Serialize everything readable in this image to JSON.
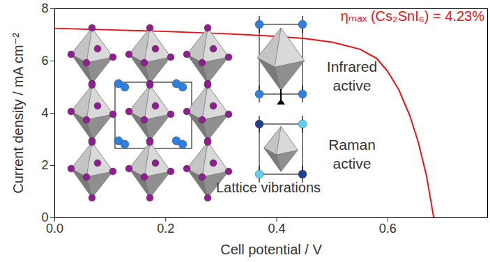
{
  "chart_data": {
    "type": "line",
    "x_label": "Cell potential / V",
    "y_label": "Current density / mA cm⁻²",
    "x": [
      0,
      0.05,
      0.1,
      0.15,
      0.2,
      0.25,
      0.3,
      0.35,
      0.4,
      0.45,
      0.5,
      0.55,
      0.58,
      0.6,
      0.62,
      0.64,
      0.655,
      0.67,
      0.683
    ],
    "values": [
      7.25,
      7.22,
      7.19,
      7.16,
      7.13,
      7.09,
      7.05,
      7.0,
      6.94,
      6.86,
      6.72,
      6.45,
      6.1,
      5.6,
      4.9,
      3.9,
      2.9,
      1.6,
      0
    ],
    "color": "#e8141c",
    "xlim": [
      0,
      0.78
    ],
    "xticks": [
      {
        "value": 0,
        "label": "0.0"
      },
      {
        "value": 0.2,
        "label": "0.2"
      },
      {
        "value": 0.4,
        "label": "0.4"
      },
      {
        "value": 0.6,
        "label": "0.6"
      }
    ],
    "ylim": [
      0,
      8
    ],
    "yticks": [
      0,
      2,
      4,
      6,
      8
    ],
    "grid": false,
    "annotations": [
      "ηₘₐₓ (Cs₂SnI₆) = 4.23%",
      "Infrared active",
      "Raman active",
      "Lattice vibrations"
    ]
  }
}
